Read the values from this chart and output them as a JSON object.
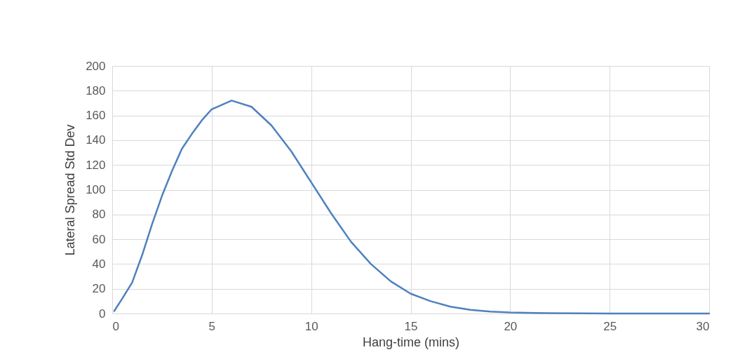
{
  "chart_data": {
    "type": "line",
    "xlabel": "Hang-time (mins)",
    "ylabel": "Lateral Spread Std Dev",
    "series": [
      {
        "color": "#4f81bd",
        "x": [
          0.1,
          0.5,
          1,
          1.5,
          2,
          2.5,
          3,
          3.5,
          4,
          4.5,
          5,
          6,
          7,
          8,
          9,
          10,
          11,
          12,
          13,
          14,
          15,
          16,
          17,
          18,
          19,
          20,
          22,
          25,
          30
        ],
        "values": [
          2,
          12,
          25,
          47,
          72,
          95,
          115,
          133,
          145,
          156,
          165,
          172,
          167,
          152,
          131,
          106,
          81,
          58,
          40,
          26,
          16,
          10,
          5.5,
          3,
          1.5,
          0.8,
          0.3,
          0,
          0
        ]
      }
    ],
    "xlim": [
      0,
      30
    ],
    "xticks": [
      0,
      5,
      10,
      15,
      20,
      25,
      30
    ],
    "ylim": [
      0,
      200
    ],
    "yticks": [
      0,
      20,
      40,
      60,
      80,
      100,
      120,
      140,
      160,
      180,
      200
    ],
    "grid": true,
    "marker": "none",
    "line_style": "solid"
  }
}
